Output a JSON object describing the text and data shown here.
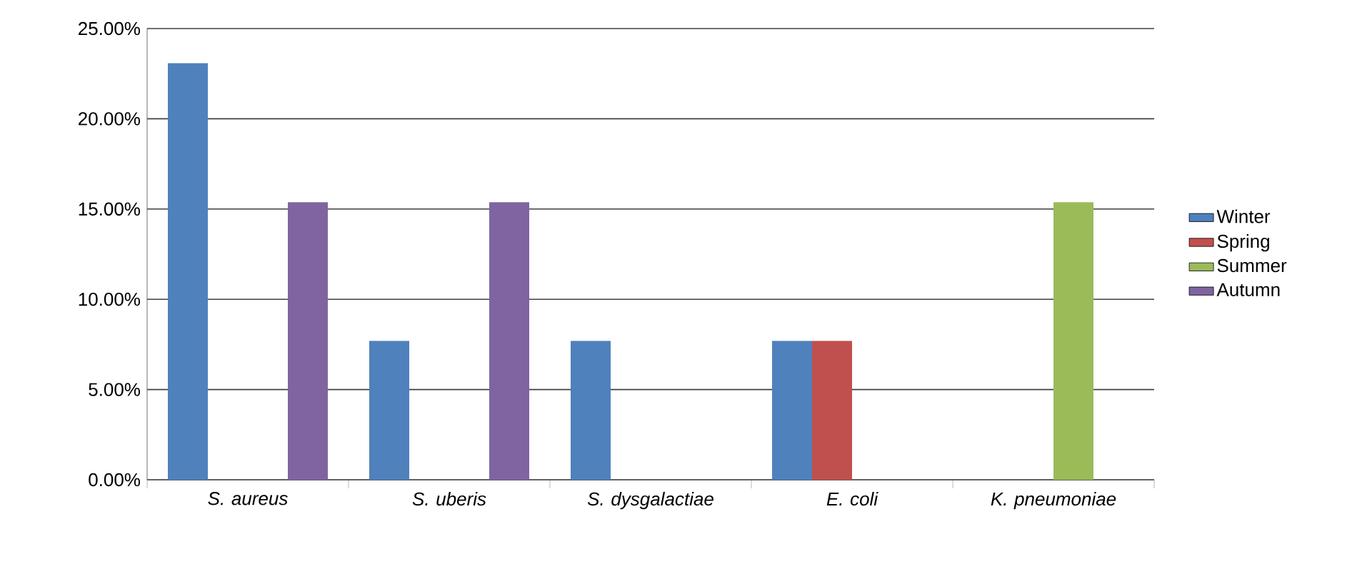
{
  "chart_data": {
    "type": "bar",
    "categories": [
      "S. aureus",
      "S. uberis",
      "S. dysgalactiae",
      "E. coli",
      "K. pneumoniae"
    ],
    "series": [
      {
        "name": "Winter",
        "color": "#4f81bd",
        "values": [
          23.08,
          7.69,
          7.69,
          7.69,
          0
        ]
      },
      {
        "name": "Spring",
        "color": "#c0504d",
        "values": [
          0,
          0,
          0,
          7.69,
          0
        ]
      },
      {
        "name": "Summer",
        "color": "#9bbb59",
        "values": [
          0,
          0,
          0,
          0,
          15.38
        ]
      },
      {
        "name": "Autumn",
        "color": "#8064a2",
        "values": [
          15.38,
          15.38,
          0,
          0,
          0
        ]
      }
    ],
    "ylim": [
      0,
      25
    ],
    "yticks": [
      {
        "value": 0,
        "label": "0.00%"
      },
      {
        "value": 5,
        "label": "5.00%"
      },
      {
        "value": 10,
        "label": "10.00%"
      },
      {
        "value": 15,
        "label": "15.00%"
      },
      {
        "value": 20,
        "label": "20.00%"
      },
      {
        "value": 25,
        "label": "25.00%"
      }
    ],
    "grid": "y",
    "legend": "right"
  }
}
